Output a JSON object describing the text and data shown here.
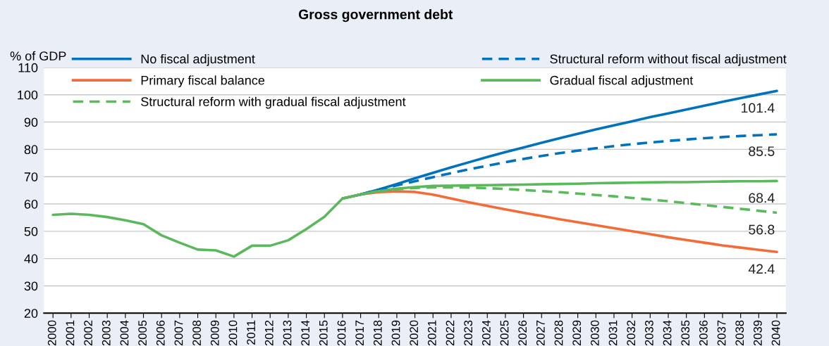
{
  "chart_data": {
    "type": "line",
    "title": "Gross government debt",
    "ylabel": "% of GDP",
    "categories": [
      "2000",
      "2001",
      "2002",
      "2003",
      "2004",
      "2005",
      "2006",
      "2007",
      "2008",
      "2009",
      "2010",
      "2011",
      "2012",
      "2013",
      "2014",
      "2015",
      "2016",
      "2017",
      "2018",
      "2019",
      "2020",
      "2021",
      "2022",
      "2023",
      "2024",
      "2025",
      "2026",
      "2027",
      "2028",
      "2029",
      "2030",
      "2031",
      "2032",
      "2033",
      "2034",
      "2035",
      "2036",
      "2037",
      "2038",
      "2039",
      "2040"
    ],
    "ylim": [
      20,
      110
    ],
    "yticks": [
      20,
      30,
      40,
      50,
      60,
      70,
      80,
      90,
      100,
      110
    ],
    "grid": "y",
    "legend": "top",
    "series": [
      {
        "name": "No fiscal adjustment",
        "color": "#0072bc",
        "line_style": "solid",
        "values": [
          null,
          null,
          null,
          null,
          null,
          null,
          null,
          null,
          null,
          null,
          null,
          null,
          null,
          null,
          null,
          null,
          62.0,
          63.5,
          65.3,
          67.3,
          69.4,
          71.4,
          73.4,
          75.3,
          77.2,
          79.0,
          80.7,
          82.4,
          84.1,
          85.7,
          87.3,
          88.8,
          90.3,
          91.8,
          93.2,
          94.6,
          96.0,
          97.4,
          98.8,
          100.1,
          101.4
        ],
        "value_labels": [
          null,
          null,
          null,
          null,
          null,
          null,
          null,
          null,
          null,
          null,
          null,
          null,
          null,
          null,
          null,
          null,
          null,
          null,
          null,
          null,
          null,
          null,
          null,
          null,
          null,
          null,
          null,
          null,
          null,
          null,
          null,
          null,
          null,
          null,
          null,
          null,
          null,
          null,
          null,
          null,
          "101.4"
        ]
      },
      {
        "name": "Structural reform without fiscal adjustment",
        "color": "#0072bc",
        "line_style": "dashed",
        "values": [
          null,
          null,
          null,
          null,
          null,
          null,
          null,
          null,
          null,
          null,
          null,
          null,
          null,
          null,
          null,
          null,
          null,
          63.5,
          65.2,
          66.8,
          68.3,
          69.8,
          71.3,
          72.7,
          74.0,
          75.3,
          76.5,
          77.6,
          78.6,
          79.5,
          80.4,
          81.2,
          81.9,
          82.5,
          83.1,
          83.6,
          84.1,
          84.5,
          84.9,
          85.2,
          85.5
        ],
        "value_labels": [
          null,
          null,
          null,
          null,
          null,
          null,
          null,
          null,
          null,
          null,
          null,
          null,
          null,
          null,
          null,
          null,
          null,
          null,
          null,
          null,
          null,
          null,
          null,
          null,
          null,
          null,
          null,
          null,
          null,
          null,
          null,
          null,
          null,
          null,
          null,
          null,
          null,
          null,
          null,
          null,
          "85.5"
        ]
      },
      {
        "name": "Primary fiscal balance",
        "color": "#f26b38",
        "line_style": "solid",
        "values": [
          null,
          null,
          null,
          null,
          null,
          null,
          null,
          null,
          null,
          null,
          null,
          null,
          null,
          null,
          null,
          null,
          62.0,
          63.5,
          64.3,
          64.6,
          64.4,
          63.4,
          62.0,
          60.6,
          59.3,
          58.0,
          56.8,
          55.6,
          54.4,
          53.3,
          52.2,
          51.1,
          50.0,
          48.9,
          47.8,
          46.8,
          45.8,
          44.8,
          44.0,
          43.2,
          42.4
        ],
        "value_labels": [
          null,
          null,
          null,
          null,
          null,
          null,
          null,
          null,
          null,
          null,
          null,
          null,
          null,
          null,
          null,
          null,
          null,
          null,
          null,
          null,
          null,
          null,
          null,
          null,
          null,
          null,
          null,
          null,
          null,
          null,
          null,
          null,
          null,
          null,
          null,
          null,
          null,
          null,
          null,
          null,
          "42.4"
        ]
      },
      {
        "name": "Gradual fiscal adjustment",
        "color": "#5cb85c",
        "line_style": "solid",
        "values": [
          56.0,
          56.4,
          56.0,
          55.2,
          54.0,
          52.6,
          48.5,
          45.8,
          43.3,
          43.0,
          40.7,
          44.7,
          44.7,
          46.7,
          50.8,
          55.3,
          62.0,
          63.5,
          64.8,
          65.6,
          66.2,
          66.6,
          66.7,
          66.8,
          66.9,
          67.0,
          67.1,
          67.2,
          67.3,
          67.4,
          67.6,
          67.7,
          67.8,
          67.9,
          68.0,
          68.0,
          68.1,
          68.2,
          68.3,
          68.3,
          68.4
        ],
        "value_labels": [
          null,
          null,
          null,
          null,
          null,
          null,
          null,
          null,
          null,
          null,
          null,
          null,
          null,
          null,
          null,
          null,
          null,
          null,
          null,
          null,
          null,
          null,
          null,
          null,
          null,
          null,
          null,
          null,
          null,
          null,
          null,
          null,
          null,
          null,
          null,
          null,
          null,
          null,
          null,
          null,
          "68.4"
        ]
      },
      {
        "name": "Structural reform with gradual fiscal adjustment",
        "color": "#5cb85c",
        "line_style": "dashed",
        "values": [
          null,
          null,
          null,
          null,
          null,
          null,
          null,
          null,
          null,
          null,
          null,
          null,
          null,
          null,
          null,
          null,
          null,
          63.5,
          64.7,
          65.4,
          65.9,
          66.1,
          66.1,
          66.0,
          65.8,
          65.5,
          65.1,
          64.7,
          64.3,
          63.8,
          63.3,
          62.8,
          62.2,
          61.6,
          61.0,
          60.3,
          59.6,
          58.9,
          58.2,
          57.5,
          56.8
        ],
        "value_labels": [
          null,
          null,
          null,
          null,
          null,
          null,
          null,
          null,
          null,
          null,
          null,
          null,
          null,
          null,
          null,
          null,
          null,
          null,
          null,
          null,
          null,
          null,
          null,
          null,
          null,
          null,
          null,
          null,
          null,
          null,
          null,
          null,
          null,
          null,
          null,
          null,
          null,
          null,
          null,
          null,
          "56.8"
        ]
      }
    ]
  }
}
